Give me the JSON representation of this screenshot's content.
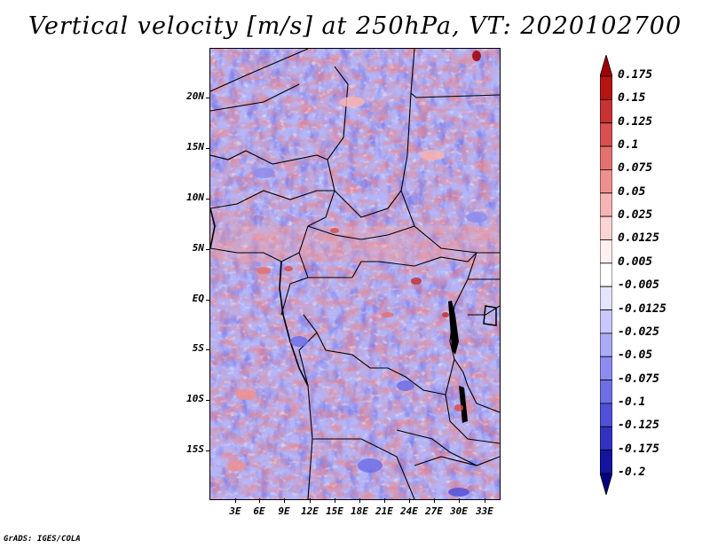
{
  "title": "Vertical velocity [m/s] at 250hPa, VT: 2020102700",
  "credit": "GrADS: IGES/COLA",
  "lat_labels": [
    "20N",
    "15N",
    "10N",
    "5N",
    "EQ",
    "5S",
    "10S",
    "15S"
  ],
  "lon_labels": [
    "3E",
    "6E",
    "9E",
    "12E",
    "15E",
    "18E",
    "21E",
    "24E",
    "27E",
    "30E",
    "33E"
  ],
  "colorbar": {
    "labels": [
      "0.175",
      "0.15",
      "0.125",
      "0.1",
      "0.075",
      "0.05",
      "0.025",
      "0.0125",
      "0.005",
      "-0.005",
      "-0.0125",
      "-0.025",
      "-0.05",
      "-0.075",
      "-0.1",
      "-0.125",
      "-0.175",
      "-0.2"
    ],
    "colors": [
      "#a00000",
      "#b41414",
      "#c83232",
      "#d85050",
      "#e47070",
      "#ee9090",
      "#f6b4b4",
      "#fbd4d4",
      "#fff0f0",
      "#ffffff",
      "#e4e4ff",
      "#c8c8ff",
      "#aaaaf8",
      "#8c8cf0",
      "#6e6ee6",
      "#5050d8",
      "#3232c0",
      "#1414a0",
      "#000080"
    ]
  }
}
